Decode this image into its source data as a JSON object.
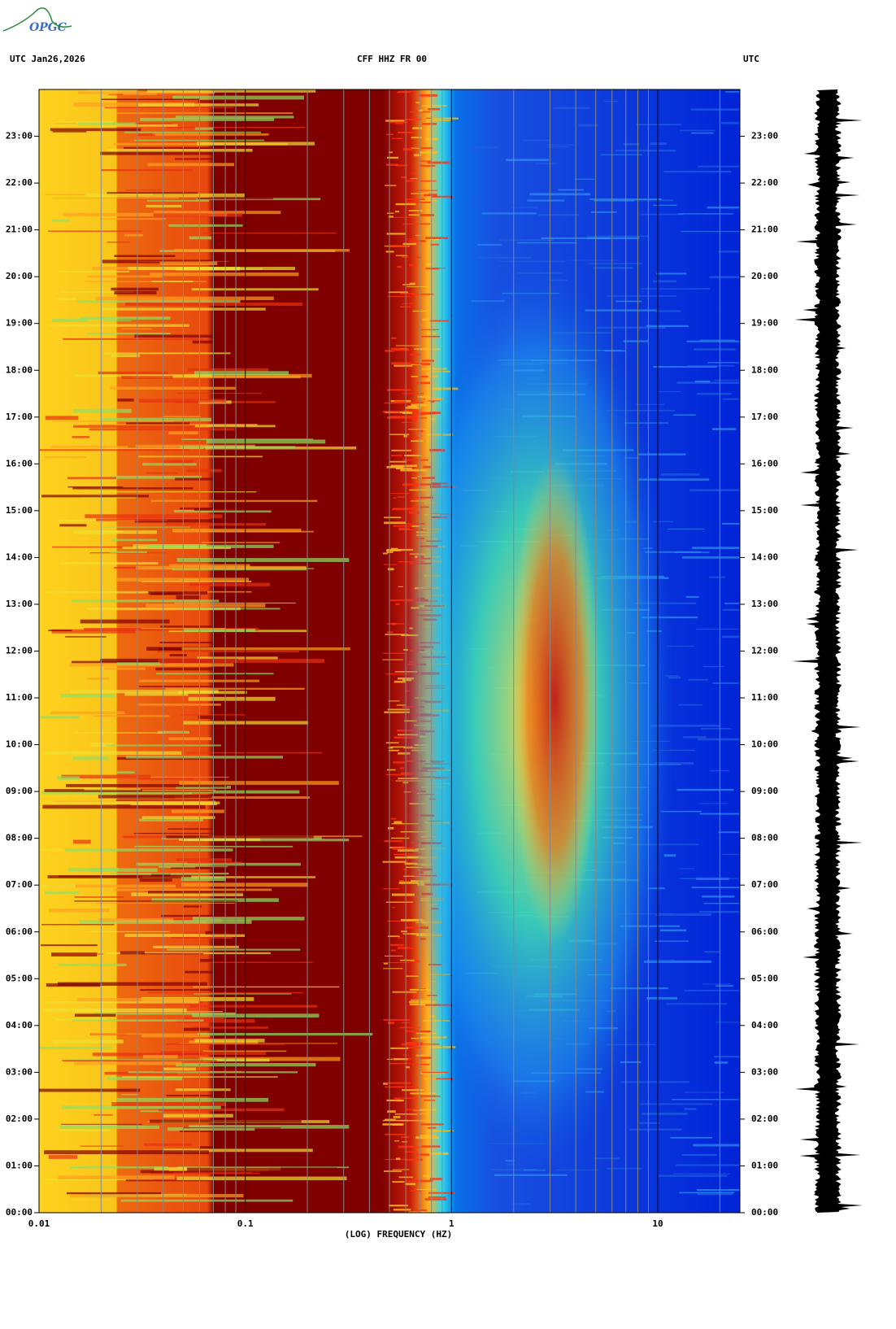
{
  "logo": "OPGC",
  "chart_data": {
    "type": "spectrogram",
    "title": "CFF HHZ FR 00",
    "date_label": "UTC  Jan26,2026",
    "right_label": "UTC",
    "x_label": "(LOG) FREQUENCY (HZ)",
    "x_log": true,
    "xlim": [
      0.01,
      25
    ],
    "xticks": [
      0.01,
      0.1,
      1,
      10
    ],
    "x_minor_ticks": [
      0.02,
      0.03,
      0.04,
      0.05,
      0.06,
      0.07,
      0.08,
      0.09,
      0.2,
      0.3,
      0.4,
      0.5,
      0.6,
      0.7,
      0.8,
      0.9,
      2,
      3,
      4,
      5,
      6,
      7,
      8,
      9,
      20
    ],
    "ylim": [
      0,
      24
    ],
    "yticks": [
      {
        "value": 0,
        "label": "00:00"
      },
      {
        "value": 1,
        "label": "01:00"
      },
      {
        "value": 2,
        "label": "02:00"
      },
      {
        "value": 3,
        "label": "03:00"
      },
      {
        "value": 4,
        "label": "04:00"
      },
      {
        "value": 5,
        "label": "05:00"
      },
      {
        "value": 6,
        "label": "06:00"
      },
      {
        "value": 7,
        "label": "07:00"
      },
      {
        "value": 8,
        "label": "08:00"
      },
      {
        "value": 9,
        "label": "09:00"
      },
      {
        "value": 10,
        "label": "10:00"
      },
      {
        "value": 11,
        "label": "11:00"
      },
      {
        "value": 12,
        "label": "12:00"
      },
      {
        "value": 13,
        "label": "13:00"
      },
      {
        "value": 14,
        "label": "14:00"
      },
      {
        "value": 15,
        "label": "15:00"
      },
      {
        "value": 16,
        "label": "16:00"
      },
      {
        "value": 17,
        "label": "17:00"
      },
      {
        "value": 18,
        "label": "18:00"
      },
      {
        "value": 19,
        "label": "19:00"
      },
      {
        "value": 20,
        "label": "20:00"
      },
      {
        "value": 21,
        "label": "21:00"
      },
      {
        "value": 22,
        "label": "22:00"
      },
      {
        "value": 23,
        "label": "23:00"
      }
    ]
  }
}
